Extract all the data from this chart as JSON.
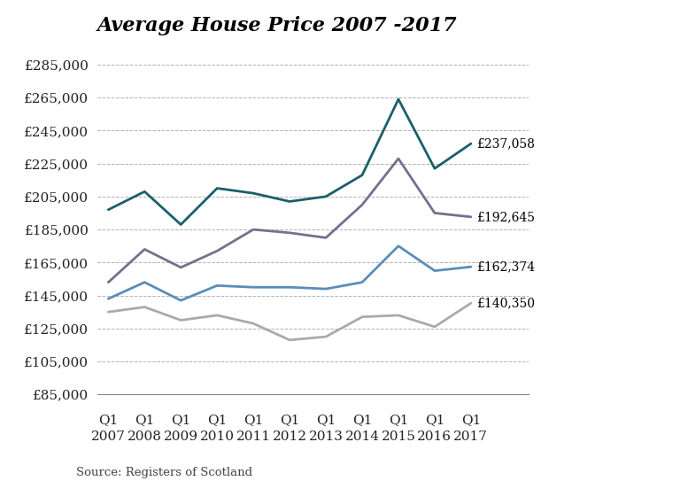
{
  "title": "Average House Price 2007 -2017",
  "source": "Source: Registers of Scotland",
  "years": [
    2007,
    2008,
    2009,
    2010,
    2011,
    2012,
    2013,
    2014,
    2015,
    2016,
    2017
  ],
  "series": {
    "teal": {
      "color": "#1a5f6a",
      "values": [
        197000,
        208000,
        188000,
        210000,
        207000,
        202000,
        205000,
        218000,
        264000,
        222000,
        237058
      ],
      "end_label": "£237,058"
    },
    "purple": {
      "color": "#7b6d8d",
      "values": [
        153000,
        173000,
        162000,
        172000,
        185000,
        183000,
        180000,
        200000,
        228000,
        195000,
        192645
      ],
      "end_label": "£192,645"
    },
    "blue": {
      "color": "#5b8db8",
      "values": [
        143000,
        153000,
        142000,
        151000,
        150000,
        150000,
        149000,
        153000,
        175000,
        160000,
        162374
      ],
      "end_label": "£162,374"
    },
    "gray": {
      "color": "#aaaaaa",
      "values": [
        135000,
        138000,
        130000,
        133000,
        128000,
        118000,
        120000,
        132000,
        133000,
        126000,
        140350
      ],
      "end_label": "£140,350"
    }
  },
  "ylim": [
    85000,
    295000
  ],
  "yticks": [
    85000,
    105000,
    125000,
    145000,
    165000,
    185000,
    205000,
    225000,
    245000,
    265000,
    285000
  ],
  "background_color": "#ffffff",
  "title_fontsize": 16,
  "tick_fontsize": 11,
  "label_fontsize": 10
}
